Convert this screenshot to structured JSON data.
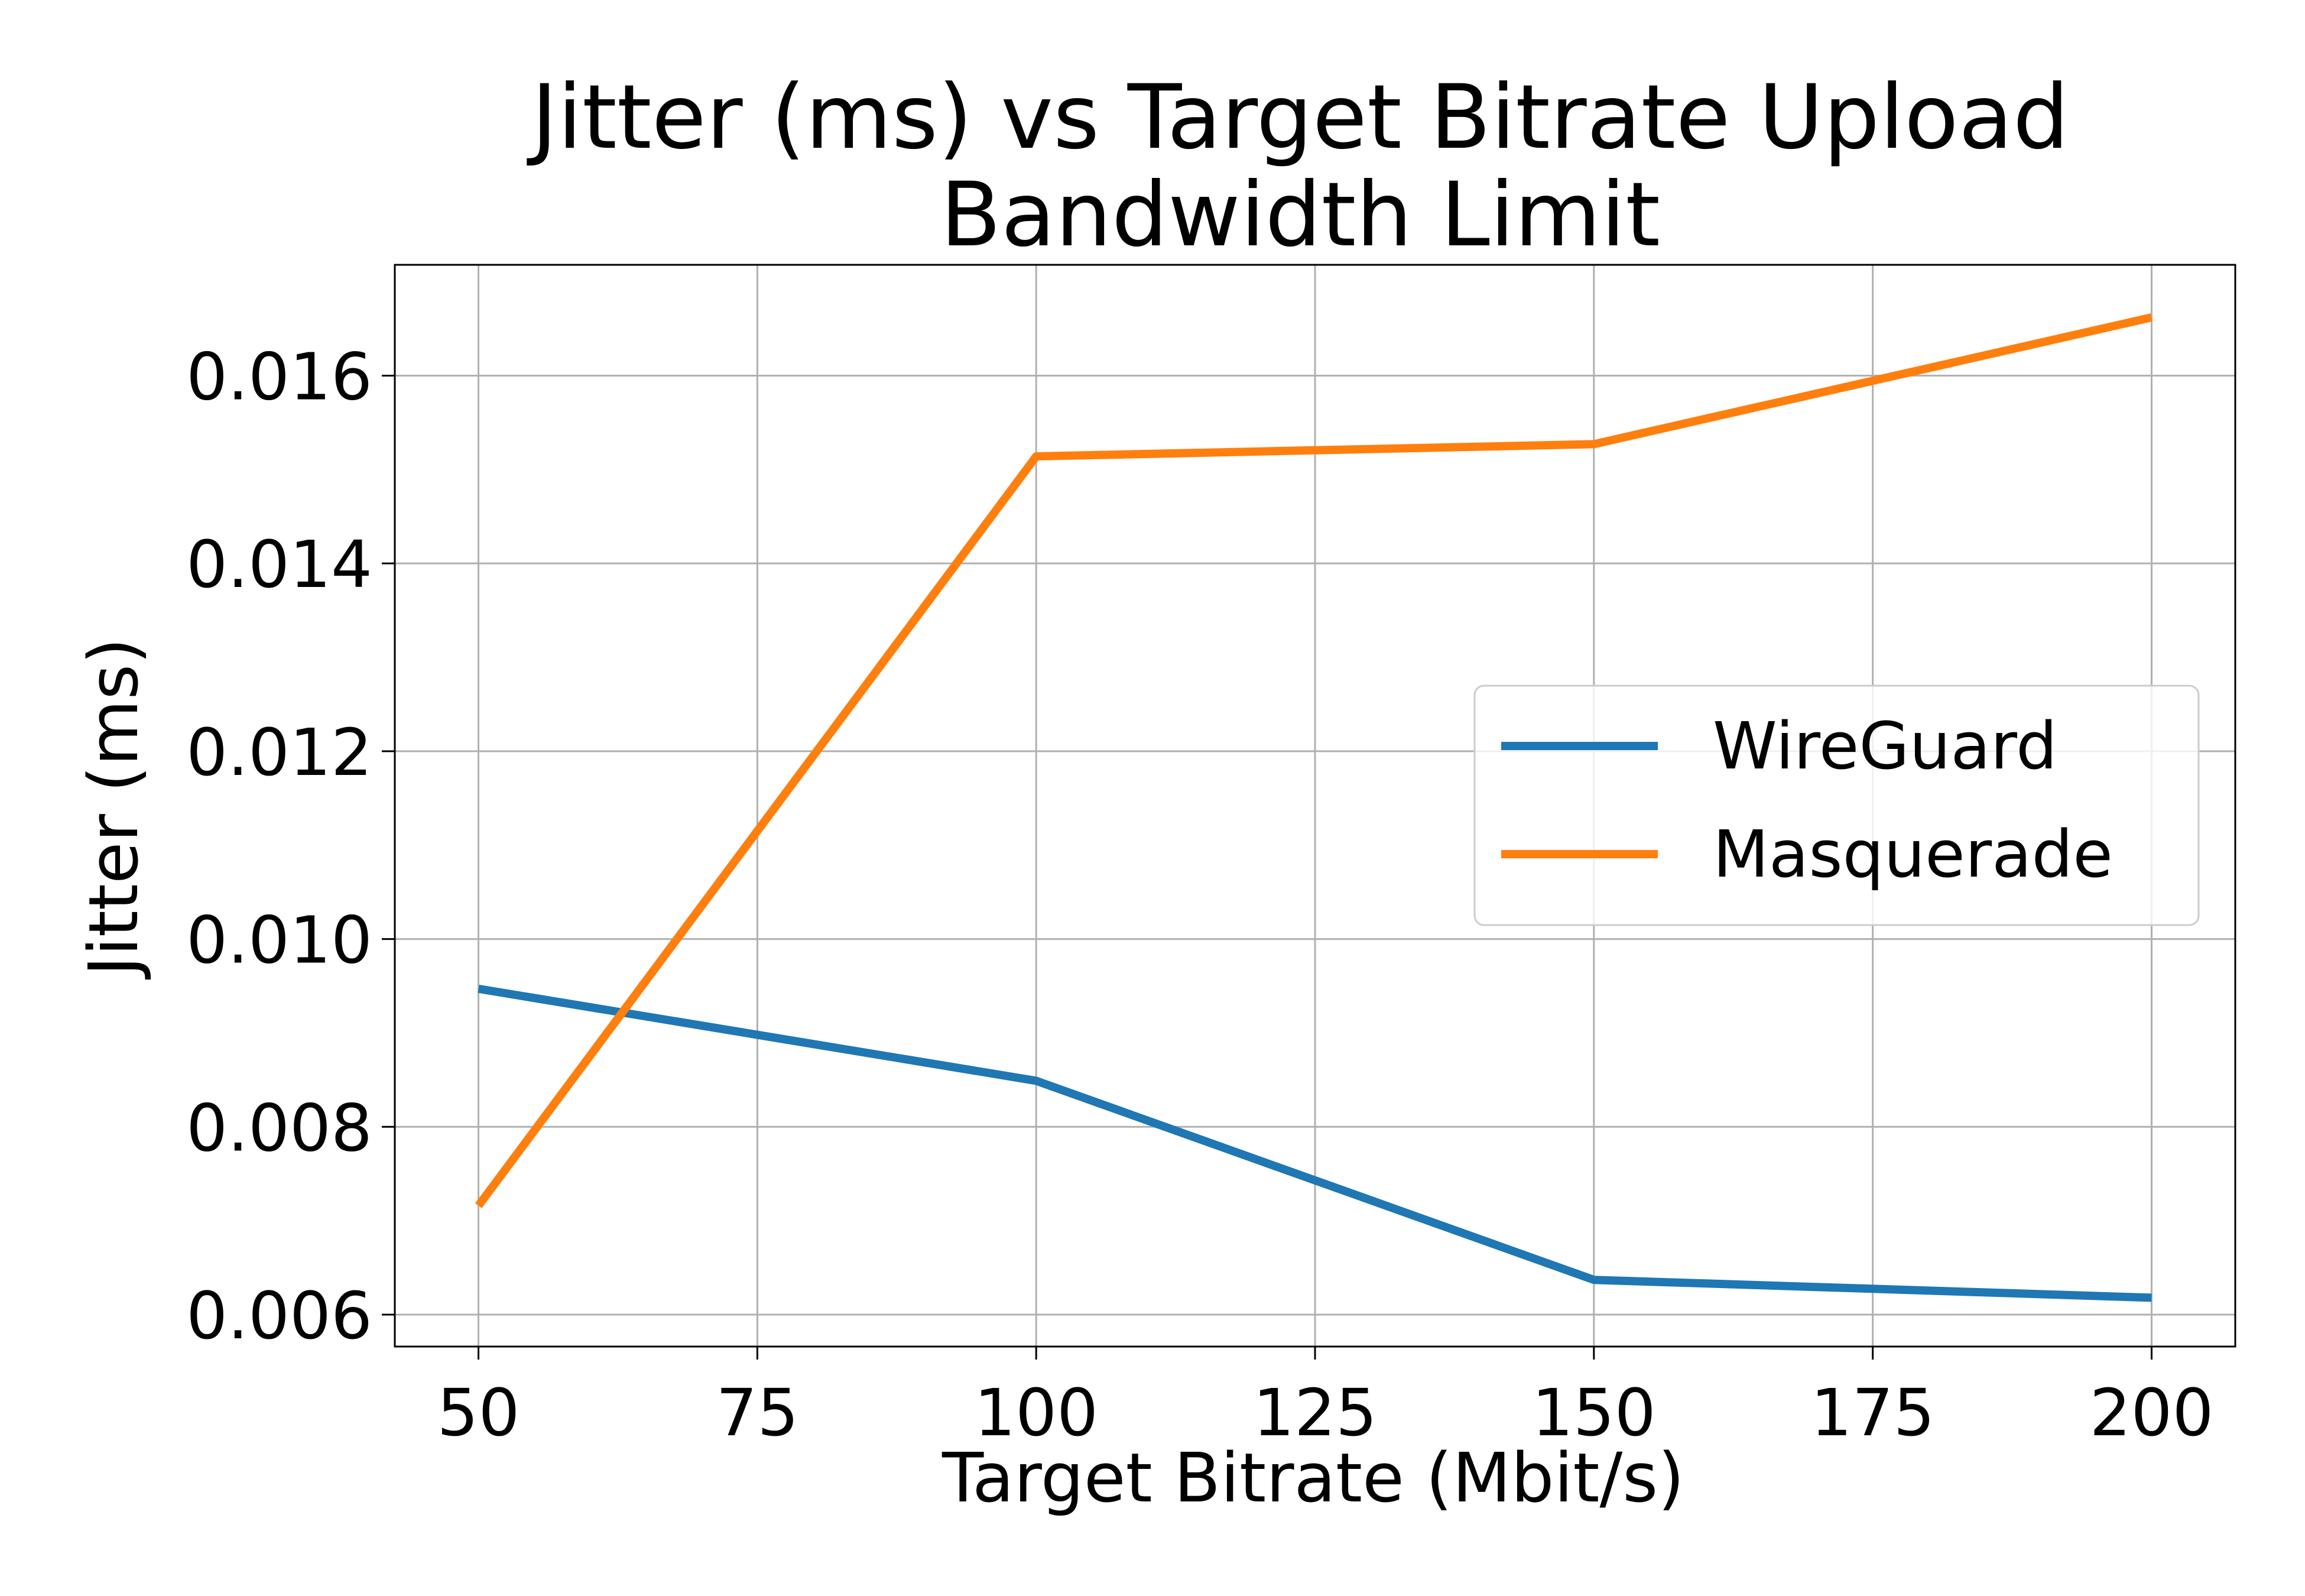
{
  "chart_data": {
    "type": "line",
    "title_lines": [
      "Jitter (ms) vs Target Bitrate Upload",
      "Bandwidth Limit"
    ],
    "xlabel": "Target Bitrate (Mbit/s)",
    "ylabel": "Jitter (ms)",
    "x": [
      50,
      100,
      150,
      200
    ],
    "xlim": [
      42.5,
      207.5
    ],
    "ylim": [
      0.00566,
      0.01718
    ],
    "xticks": [
      50,
      75,
      100,
      125,
      150,
      175,
      200
    ],
    "yticks": [
      0.006,
      0.008,
      0.01,
      0.012,
      0.014,
      0.016
    ],
    "xtick_labels": [
      "50",
      "75",
      "100",
      "125",
      "150",
      "175",
      "200"
    ],
    "ytick_labels": [
      "0.006",
      "0.008",
      "0.010",
      "0.012",
      "0.014",
      "0.016"
    ],
    "grid": true,
    "legend_position": "center-right",
    "series": [
      {
        "name": "WireGuard",
        "color": "#1f77b4",
        "values": [
          0.00947,
          0.00849,
          0.00637,
          0.00618
        ]
      },
      {
        "name": "Masquerade",
        "color": "#ff7f0e",
        "values": [
          0.00716,
          0.01514,
          0.01527,
          0.01662
        ]
      }
    ]
  }
}
